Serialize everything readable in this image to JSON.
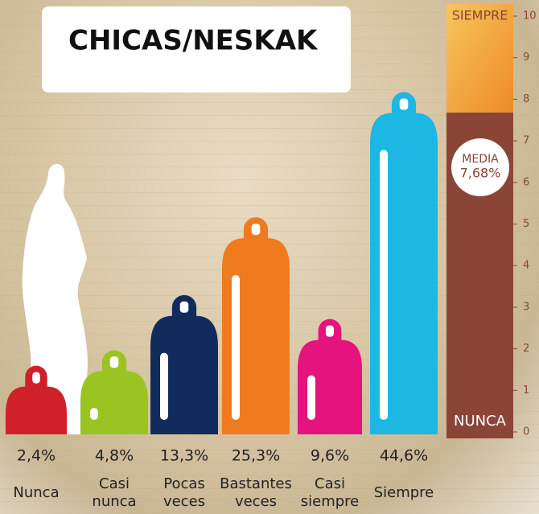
{
  "chart_data": [
    {
      "type": "bar",
      "title": "CHICAS/NESKAK",
      "categories": [
        "Nunca",
        "Casi nunca",
        "Pocas veces",
        "Bastantes veces",
        "Casi siempre",
        "Siempre"
      ],
      "values": [
        2.4,
        4.8,
        13.3,
        25.3,
        9.6,
        44.6
      ],
      "value_labels": [
        "2,4%",
        "4,8%",
        "13,3%",
        "25,3%",
        "9,6%",
        "44,6%"
      ],
      "colors": [
        "#d0202a",
        "#9bc322",
        "#112c5c",
        "#ef7b1e",
        "#e4137e",
        "#1cb7e3"
      ]
    },
    {
      "type": "gauge",
      "annotation": "MEDIA",
      "values": [
        7.68
      ],
      "value_labels": [
        "7,68%"
      ],
      "top_label": "SIEMPRE",
      "bottom_label": "NUNCA",
      "color": "#8a4536",
      "ylim": [
        0,
        10
      ],
      "yticks": [
        0,
        1,
        2,
        3,
        4,
        5,
        6,
        7,
        8,
        9,
        10
      ]
    }
  ]
}
